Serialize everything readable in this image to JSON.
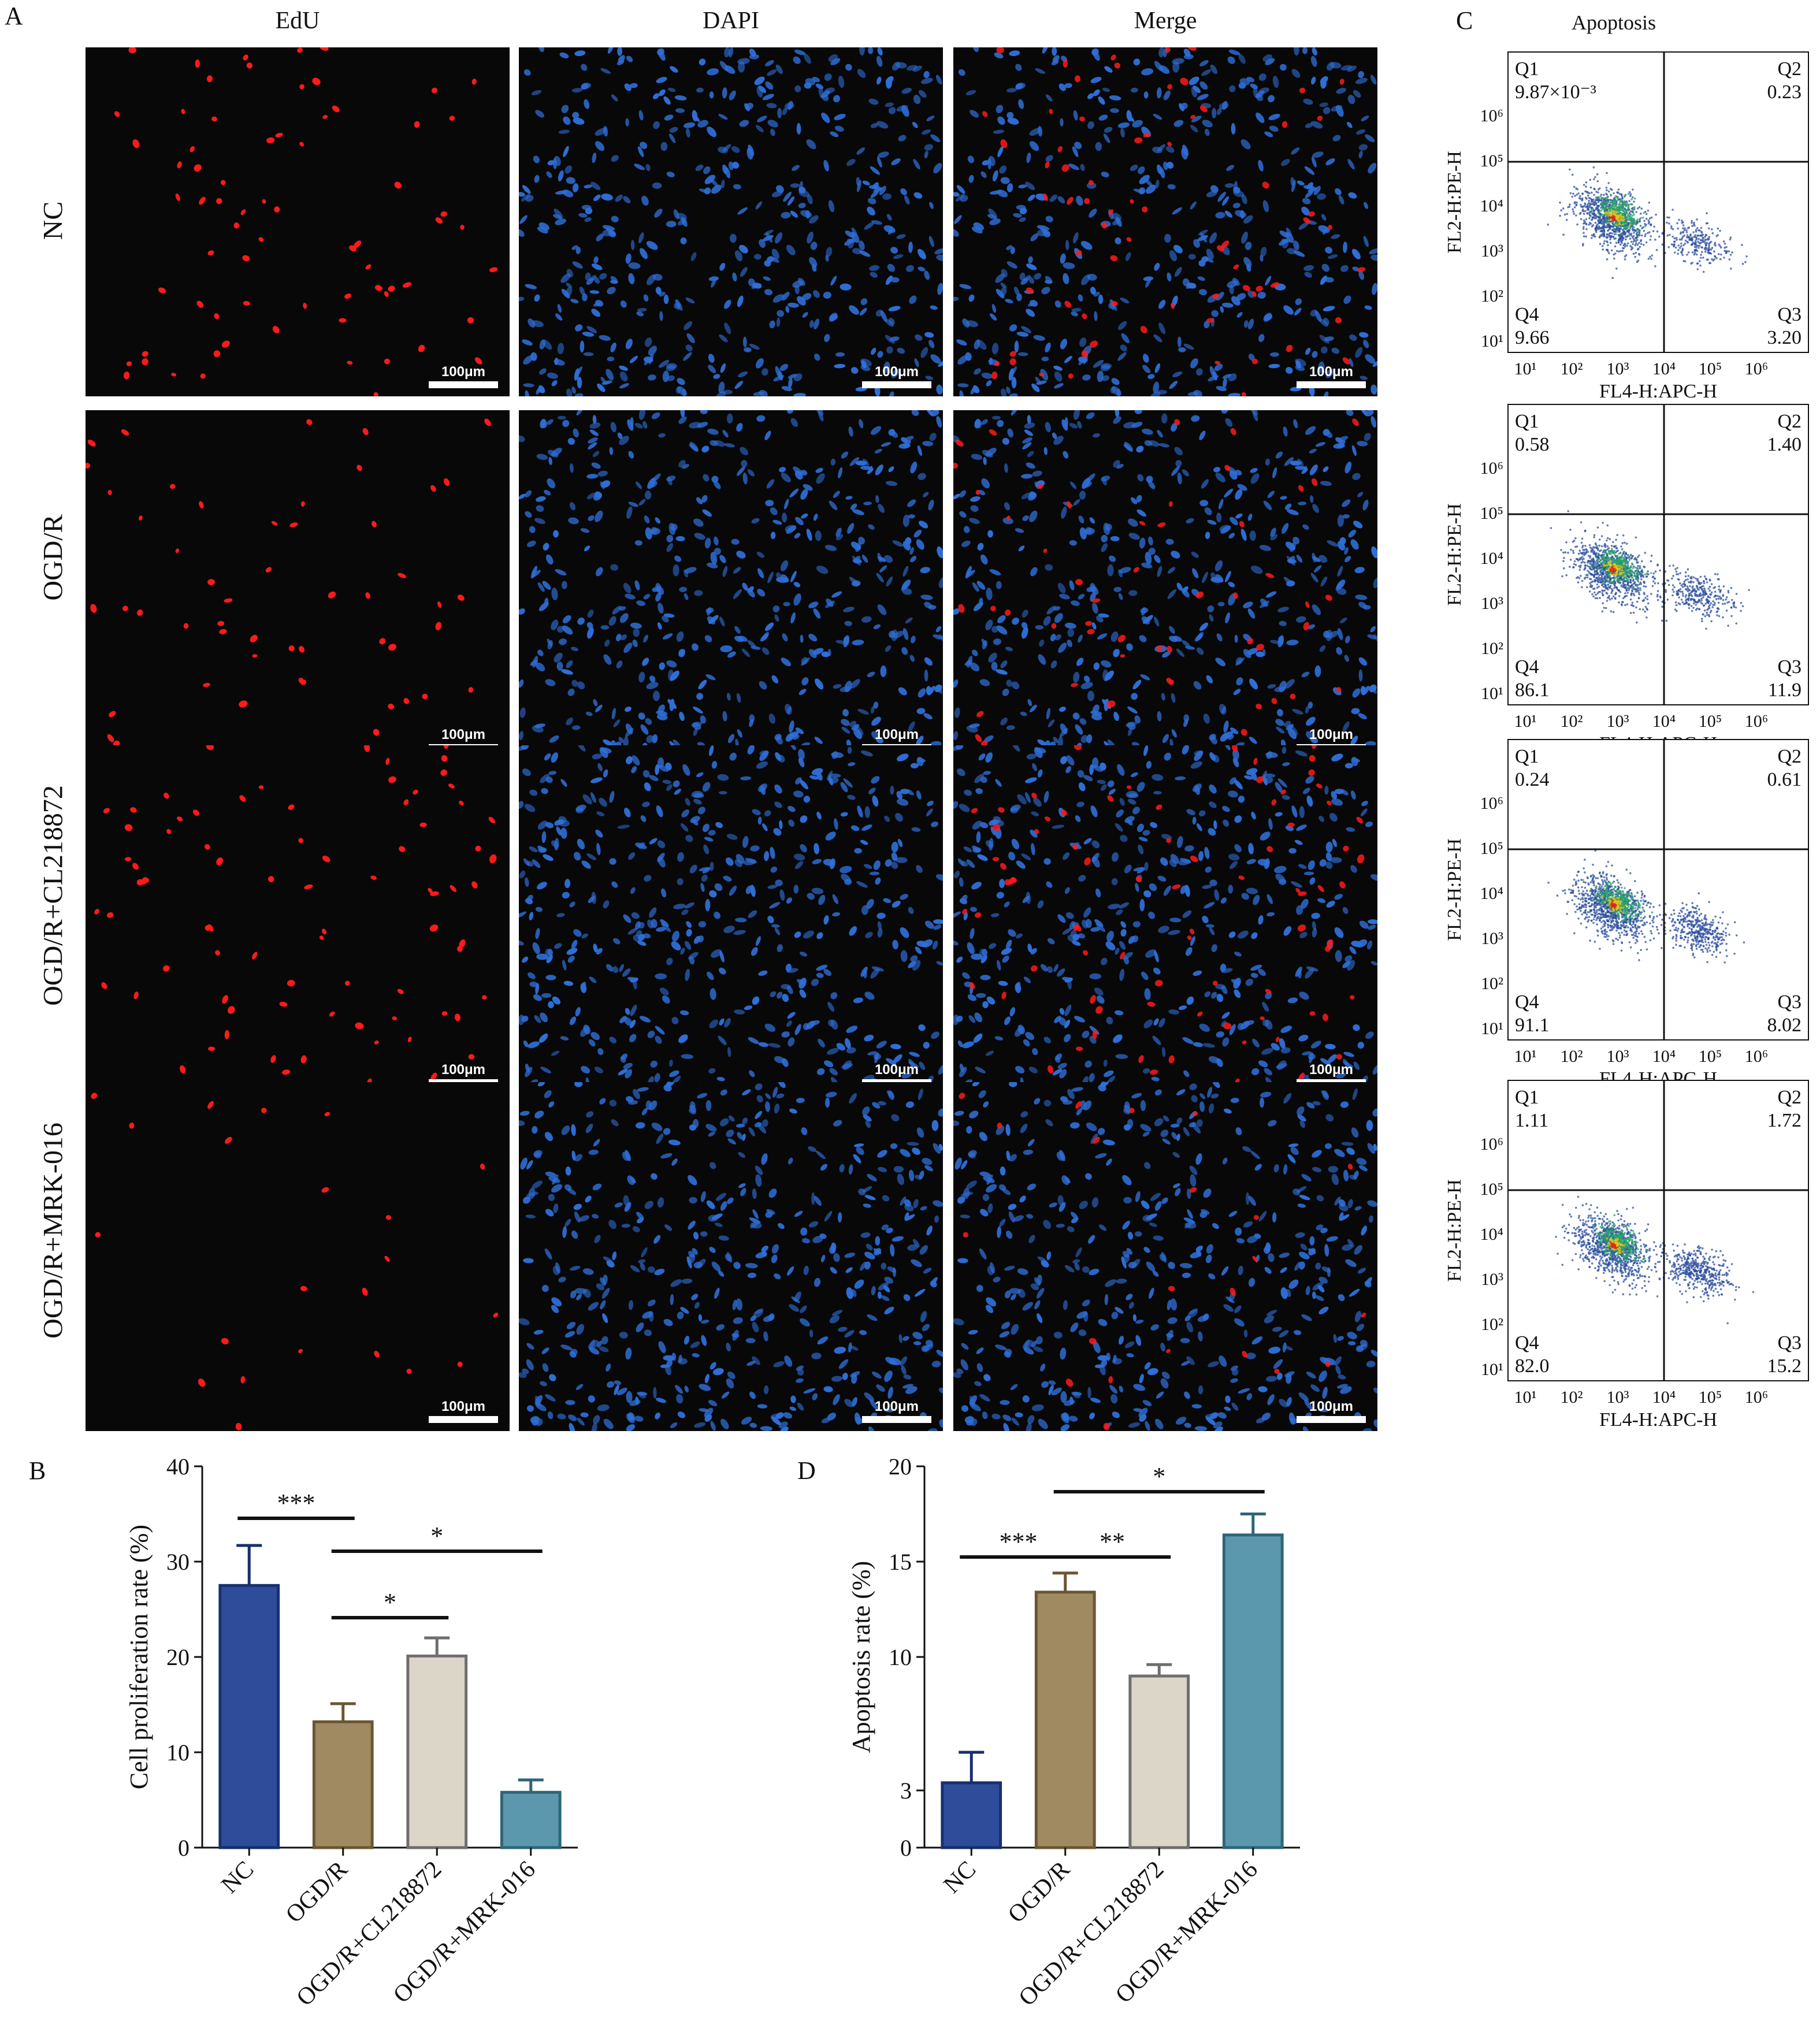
{
  "panels": {
    "A": "A",
    "B": "B",
    "C": "C",
    "D": "D"
  },
  "microscopy": {
    "columns": [
      "EdU",
      "DAPI",
      "Merge"
    ],
    "rows": [
      "NC",
      "OGD/R",
      "OGD/R+CL218872",
      "OGD/R+MRK-016"
    ],
    "scale_label": "100μm",
    "colors": {
      "edu": "#ff1a1a",
      "dapi": "#2f6fd8",
      "background": "#080808"
    }
  },
  "flow": {
    "title": "Apoptosis",
    "xlabel": "FL4-H:APC-H",
    "ylabel": "FL2-H:PE-H",
    "tick_labels": [
      "10¹",
      "10²",
      "10³",
      "10⁴",
      "10⁵",
      "10⁶"
    ],
    "quadrant_names": [
      "Q1",
      "Q2",
      "Q3",
      "Q4"
    ],
    "plots": [
      {
        "q1": "9.87×10⁻³",
        "q2": "0.23",
        "q3": "3.20",
        "q4": "9.66"
      },
      {
        "q1": "0.58",
        "q2": "1.40",
        "q3": "11.9",
        "q4": "86.1"
      },
      {
        "q1": "0.24",
        "q2": "0.61",
        "q3": "8.02",
        "q4": "91.1"
      },
      {
        "q1": "1.11",
        "q2": "1.72",
        "q3": "15.2",
        "q4": "82.0"
      }
    ]
  },
  "chart_data": [
    {
      "type": "bar",
      "title": "",
      "xlabel": "",
      "ylabel": "Cell proliferation rate (%)",
      "ylim": [
        0,
        40
      ],
      "yticks": [
        0,
        10,
        20,
        30,
        40
      ],
      "categories": [
        "NC",
        "OGD/R",
        "OGD/R+CL218872",
        "OGD/R+MRK-016"
      ],
      "values": [
        27.5,
        13.2,
        20.1,
        5.8
      ],
      "errors": [
        4.2,
        1.9,
        1.9,
        1.3
      ],
      "colors": [
        "#2e4c9a",
        "#a08a62",
        "#dcd6c8",
        "#5b98ad"
      ],
      "edge_colors": [
        "#16306e",
        "#6a5632",
        "#6e6e6e",
        "#2e6578"
      ],
      "significance": [
        {
          "from": 0,
          "to": 1,
          "label": "***"
        },
        {
          "from": 1,
          "to": 2,
          "label": "*"
        },
        {
          "from": 1,
          "to": 3,
          "label": "*"
        }
      ]
    },
    {
      "type": "bar",
      "title": "",
      "xlabel": "",
      "ylabel": "Apoptosis rate (%)",
      "ylim": [
        0,
        20
      ],
      "yticks": [
        0,
        3,
        10,
        15,
        20
      ],
      "categories": [
        "NC",
        "OGD/R",
        "OGD/R+CL218872",
        "OGD/R+MRK-016"
      ],
      "values": [
        3.4,
        13.4,
        9.0,
        16.4
      ],
      "errors": [
        1.6,
        1.0,
        0.6,
        1.1
      ],
      "colors": [
        "#2e4c9a",
        "#a08a62",
        "#dcd6c8",
        "#5b98ad"
      ],
      "edge_colors": [
        "#16306e",
        "#6a5632",
        "#6e6e6e",
        "#2e6578"
      ],
      "significance": [
        {
          "from": 0,
          "to": 1,
          "label": "***"
        },
        {
          "from": 1,
          "to": 2,
          "label": "**"
        },
        {
          "from": 1,
          "to": 3,
          "label": "*"
        }
      ]
    }
  ]
}
